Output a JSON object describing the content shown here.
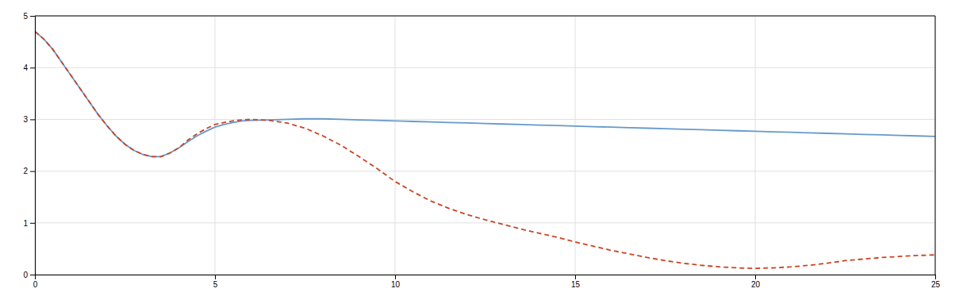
{
  "chart_data": {
    "type": "line",
    "x": [
      0,
      0.25,
      0.5,
      0.75,
      1.0,
      1.25,
      1.5,
      1.75,
      2.0,
      2.25,
      2.5,
      2.75,
      3.0,
      3.25,
      3.5,
      3.75,
      4.0,
      4.25,
      4.5,
      4.75,
      5.0,
      5.25,
      5.5,
      5.75,
      6.0,
      6.5,
      7.0,
      7.5,
      8.0,
      8.5,
      9.0,
      9.5,
      10.0,
      10.5,
      11.0,
      11.5,
      12.0,
      12.5,
      13.0,
      13.5,
      14.0,
      14.5,
      15.0,
      15.5,
      16.0,
      16.5,
      17.0,
      17.5,
      18.0,
      18.5,
      19.0,
      19.5,
      20.0,
      20.5,
      21.0,
      21.5,
      22.0,
      22.5,
      23.0,
      23.5,
      24.0,
      24.5,
      25.0
    ],
    "series": [
      {
        "color": "#6699cc",
        "line_style": "solid",
        "values": [
          4.7,
          4.55,
          4.35,
          4.1,
          3.85,
          3.6,
          3.35,
          3.1,
          2.88,
          2.68,
          2.52,
          2.4,
          2.32,
          2.28,
          2.28,
          2.35,
          2.45,
          2.57,
          2.68,
          2.77,
          2.85,
          2.9,
          2.94,
          2.97,
          2.98,
          2.99,
          3.0,
          3.01,
          3.01,
          3.0,
          2.99,
          2.98,
          2.97,
          2.96,
          2.95,
          2.94,
          2.93,
          2.92,
          2.91,
          2.9,
          2.89,
          2.88,
          2.87,
          2.86,
          2.85,
          2.84,
          2.83,
          2.82,
          2.81,
          2.8,
          2.79,
          2.78,
          2.77,
          2.76,
          2.75,
          2.74,
          2.73,
          2.72,
          2.71,
          2.7,
          2.69,
          2.68,
          2.67
        ]
      },
      {
        "color": "#cc4422",
        "line_style": "dashed",
        "values": [
          4.7,
          4.55,
          4.35,
          4.1,
          3.85,
          3.6,
          3.35,
          3.1,
          2.88,
          2.68,
          2.52,
          2.4,
          2.32,
          2.28,
          2.28,
          2.35,
          2.45,
          2.6,
          2.72,
          2.82,
          2.9,
          2.94,
          2.97,
          2.99,
          3.0,
          2.98,
          2.93,
          2.83,
          2.68,
          2.5,
          2.28,
          2.05,
          1.8,
          1.6,
          1.42,
          1.28,
          1.16,
          1.06,
          0.97,
          0.88,
          0.8,
          0.72,
          0.63,
          0.55,
          0.47,
          0.4,
          0.33,
          0.27,
          0.22,
          0.18,
          0.15,
          0.13,
          0.12,
          0.13,
          0.15,
          0.18,
          0.22,
          0.27,
          0.3,
          0.33,
          0.35,
          0.37,
          0.38
        ]
      }
    ],
    "xlim": [
      0,
      25
    ],
    "ylim": [
      0,
      5
    ],
    "xticks": [
      0,
      5,
      10,
      15,
      20,
      25
    ],
    "yticks": [
      0,
      1,
      2,
      3,
      4,
      5
    ],
    "grid": true
  }
}
